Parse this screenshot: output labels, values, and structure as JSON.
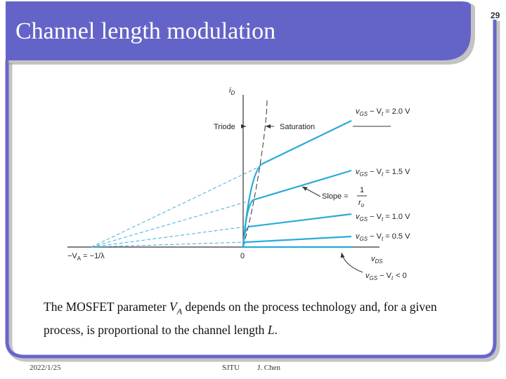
{
  "slide_number": "29",
  "title": "Channel length modulation",
  "figure": {
    "y_axis": "i",
    "y_axis_sub": "D",
    "x_axis": "v",
    "x_axis_sub": "DS",
    "origin": "0",
    "intercept": "−V",
    "intercept_sub": "A",
    "intercept_rest": " = −1/λ",
    "triode": "Triode",
    "saturation": "Saturation",
    "slope": "Slope =",
    "slope_num": "1",
    "slope_den": "r",
    "slope_den_sub": "o",
    "curve_label": {
      "v": "v",
      "gs": "GS",
      "minus": " − V",
      "t": "t",
      "eq": " = "
    },
    "curve_values": [
      "2.0 V",
      "1.5 V",
      "1.0 V",
      "0.5 V"
    ],
    "cutoff": "< 0"
  },
  "body": {
    "before": "The MOSFET parameter ",
    "va": "V",
    "va_sub": "A",
    "middle": " depends on the process technology and, for a given process, is proportional to the channel length ",
    "l": "L",
    "end": "."
  },
  "footer": {
    "date": "2022/1/25",
    "school": "SJTU",
    "author": "J. Chen"
  }
}
